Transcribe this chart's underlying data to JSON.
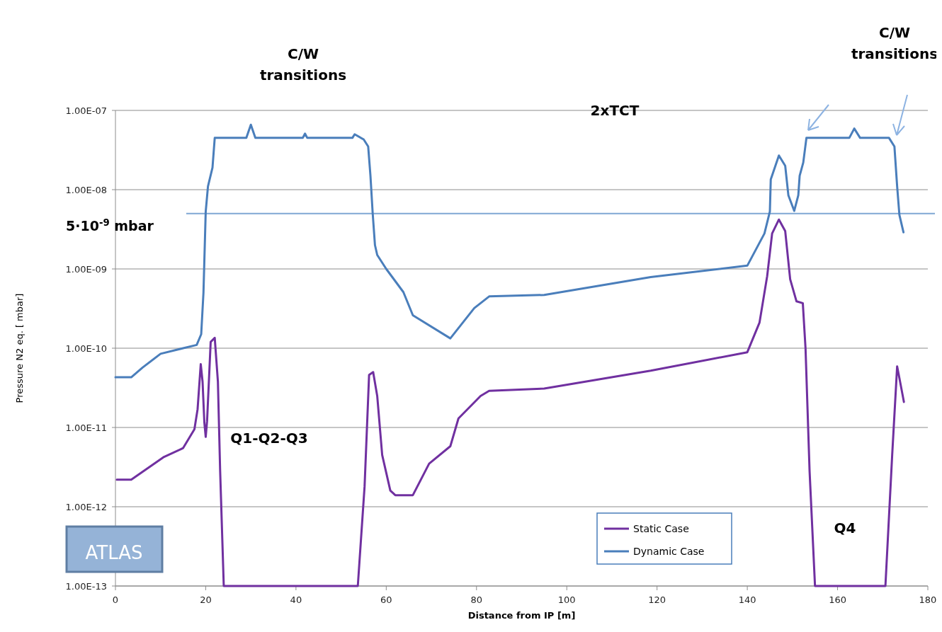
{
  "chart_data": {
    "type": "line",
    "xlabel": "Distance from IP [m]",
    "ylabel": "Pressure N2 eq. [ mbar]",
    "log": "y",
    "xlim": [
      0,
      180
    ],
    "xticks": [
      0,
      20,
      40,
      60,
      80,
      100,
      120,
      140,
      160,
      180
    ],
    "ylim": [
      1e-13,
      1e-07
    ],
    "yticks": [
      {
        "value": 1e-13,
        "label": "1.00E-13"
      },
      {
        "value": 1e-12,
        "label": "1.00E-12"
      },
      {
        "value": 1e-11,
        "label": "1.00E-11"
      },
      {
        "value": 1e-10,
        "label": "1.00E-10"
      },
      {
        "value": 1e-09,
        "label": "1.00E-09"
      },
      {
        "value": 1e-08,
        "label": "1.00E-08"
      },
      {
        "value": 1e-07,
        "label": "1.00E-07"
      }
    ],
    "grid": "y",
    "legend": "bottom",
    "line_style": "solid",
    "marker": "none",
    "ref_lines": [
      {
        "axis": "y",
        "value": 5e-09,
        "label": "5·10$^{-9}$ mbar",
        "color": "#7fa7d3"
      }
    ],
    "annotations": [
      "C/W transitions",
      "C/W transitions",
      "2xTCT",
      "Q1-Q2-Q3",
      "Q4",
      "ATLAS"
    ],
    "series": [
      {
        "name": "Static Case",
        "color": "#7030a0",
        "x": [
          0.3,
          3.5,
          10.6,
          15,
          17.5,
          18.2,
          18.9,
          19.3,
          19.7,
          20,
          20.3,
          21.1,
          22,
          22.7,
          23.2,
          24,
          53.7,
          55.2,
          56.2,
          57.1,
          58,
          59.1,
          60.9,
          62,
          65.9,
          69.5,
          74.2,
          76,
          80.9,
          82.8,
          95,
          118.6,
          140,
          142.7,
          144.4,
          145.5,
          147,
          148.4,
          149.5,
          150.9,
          152.3,
          152.9,
          153.8,
          155,
          170.6,
          172.1,
          173.2,
          173.7,
          174.7
        ],
        "values": [
          2.2e-12,
          2.2e-12,
          4.2e-12,
          5.5e-12,
          9.5e-12,
          1.7e-11,
          6.3e-11,
          3.8e-11,
          1.15e-11,
          7.6e-12,
          1.2e-11,
          1.2e-10,
          1.35e-10,
          3.8e-11,
          2.8e-12,
          1e-13,
          1e-13,
          1.8e-12,
          4.6e-11,
          5e-11,
          2.5e-11,
          4.5e-12,
          1.6e-12,
          1.4e-12,
          1.4e-12,
          3.5e-12,
          5.8e-12,
          1.3e-11,
          2.5e-11,
          2.9e-11,
          3.1e-11,
          5.2e-11,
          8.9e-11,
          2.1e-10,
          8.1e-10,
          2.8e-09,
          4.2e-09,
          3e-09,
          7.4e-10,
          3.9e-10,
          3.7e-10,
          1e-10,
          2.8e-12,
          1e-13,
          1e-13,
          4.5e-12,
          5.9e-11,
          4.2e-11,
          2.1e-11
        ]
      },
      {
        "name": "Dynamic Case",
        "color": "#4a7ebb",
        "x": [
          0,
          3.5,
          6,
          10,
          15,
          18,
          19,
          19.5,
          20,
          20.5,
          21.5,
          22,
          29,
          30,
          31,
          41.5,
          42,
          42.5,
          52.5,
          53,
          55,
          56,
          56.5,
          57,
          57.5,
          58,
          60,
          63.8,
          65.9,
          74.2,
          79.5,
          82.8,
          95,
          118.6,
          140,
          143.8,
          145,
          145.2,
          147,
          148.4,
          149.1,
          150.4,
          151.3,
          151.6,
          152.4,
          153.1,
          162.6,
          163.7,
          165,
          171.4,
          172.6,
          173.2,
          173.7,
          174.6
        ],
        "values": [
          4.3e-11,
          4.3e-11,
          5.7e-11,
          8.5e-11,
          1e-10,
          1.1e-10,
          1.5e-10,
          5e-10,
          5.3e-09,
          1.1e-08,
          1.9e-08,
          4.5e-08,
          4.5e-08,
          6.6e-08,
          4.5e-08,
          4.5e-08,
          5.1e-08,
          4.5e-08,
          4.5e-08,
          5e-08,
          4.3e-08,
          3.5e-08,
          1.5e-08,
          5e-09,
          2e-09,
          1.5e-09,
          1e-09,
          5.1e-10,
          2.6e-10,
          1.33e-10,
          3.2e-10,
          4.5e-10,
          4.7e-10,
          7.9e-10,
          1.1e-09,
          2.8e-09,
          5.3e-09,
          1.35e-08,
          2.7e-08,
          2e-08,
          8.5e-09,
          5.4e-09,
          8.5e-09,
          1.5e-08,
          2.2e-08,
          4.5e-08,
          4.5e-08,
          5.9e-08,
          4.5e-08,
          4.5e-08,
          3.5e-08,
          1.1e-08,
          4.8e-09,
          2.9e-09
        ]
      }
    ]
  }
}
